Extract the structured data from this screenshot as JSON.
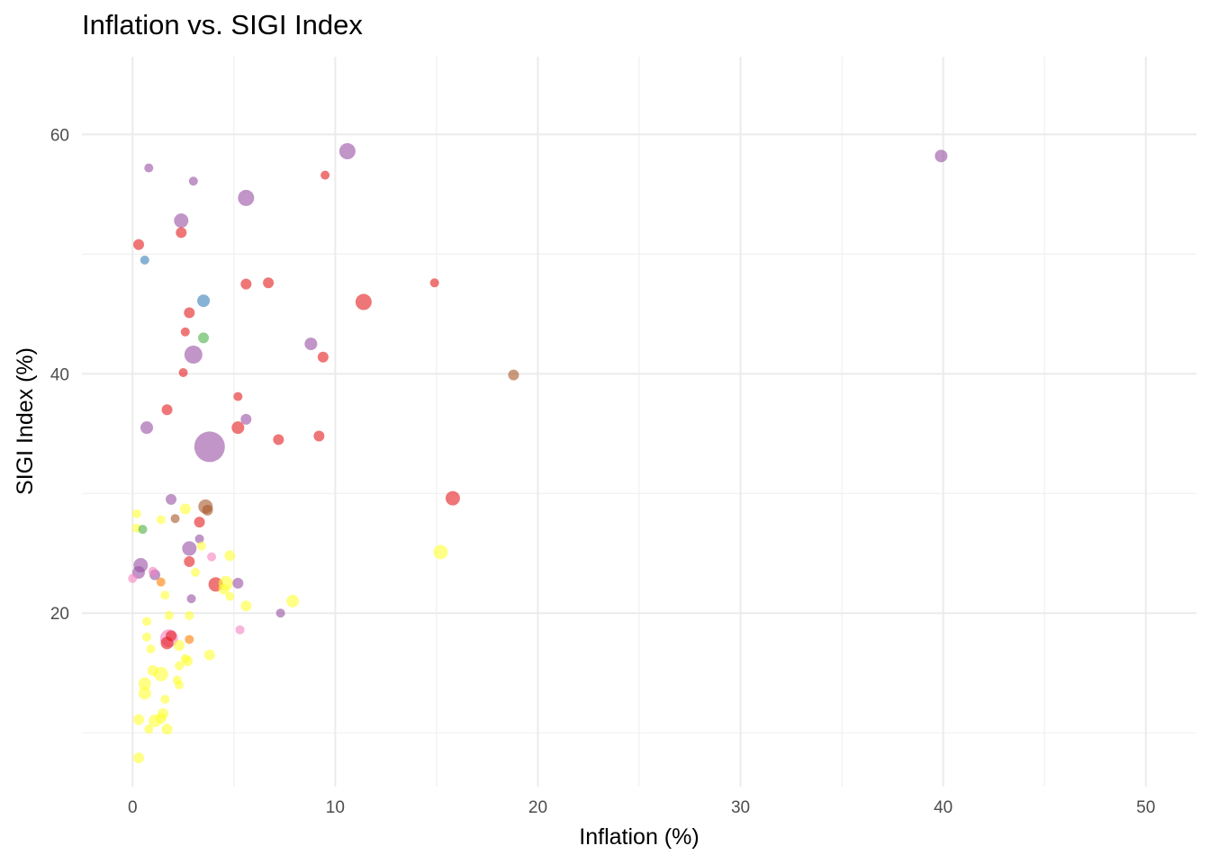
{
  "chart_data": {
    "type": "scatter",
    "title": "Inflation vs. SIGI Index",
    "xlabel": "Inflation (%)",
    "ylabel": "SIGI Index (%)",
    "xlim": [
      -2.5,
      52.5
    ],
    "ylim": [
      5.5,
      66.5
    ],
    "x_ticks": [
      0,
      10,
      20,
      30,
      40,
      50
    ],
    "y_ticks": [
      20,
      40,
      60
    ],
    "grid": true,
    "legend": "none",
    "point_opacity": 0.6,
    "points": [
      {
        "x": 39.9,
        "y": 58.2,
        "r": 7,
        "color": "#984ea3"
      },
      {
        "x": 10.6,
        "y": 58.6,
        "r": 9,
        "color": "#984ea3"
      },
      {
        "x": 9.5,
        "y": 56.6,
        "r": 5,
        "color": "#e41a1c"
      },
      {
        "x": 0.8,
        "y": 57.2,
        "r": 5,
        "color": "#984ea3"
      },
      {
        "x": 3.0,
        "y": 56.1,
        "r": 5,
        "color": "#984ea3"
      },
      {
        "x": 5.6,
        "y": 54.7,
        "r": 9,
        "color": "#984ea3"
      },
      {
        "x": 2.4,
        "y": 52.8,
        "r": 8,
        "color": "#984ea3"
      },
      {
        "x": 2.4,
        "y": 51.8,
        "r": 6,
        "color": "#e41a1c"
      },
      {
        "x": 0.3,
        "y": 50.8,
        "r": 6,
        "color": "#e41a1c"
      },
      {
        "x": 0.6,
        "y": 49.5,
        "r": 5,
        "color": "#377eb8"
      },
      {
        "x": 14.9,
        "y": 47.6,
        "r": 5,
        "color": "#e41a1c"
      },
      {
        "x": 6.7,
        "y": 47.6,
        "r": 6,
        "color": "#e41a1c"
      },
      {
        "x": 5.6,
        "y": 47.5,
        "r": 6,
        "color": "#e41a1c"
      },
      {
        "x": 11.4,
        "y": 46.0,
        "r": 9,
        "color": "#e41a1c"
      },
      {
        "x": 3.5,
        "y": 46.1,
        "r": 7,
        "color": "#377eb8"
      },
      {
        "x": 2.8,
        "y": 45.1,
        "r": 6,
        "color": "#e41a1c"
      },
      {
        "x": 2.6,
        "y": 43.5,
        "r": 5,
        "color": "#e41a1c"
      },
      {
        "x": 3.5,
        "y": 43.0,
        "r": 6,
        "color": "#4daf4a"
      },
      {
        "x": 8.8,
        "y": 42.5,
        "r": 7,
        "color": "#984ea3"
      },
      {
        "x": 9.4,
        "y": 41.4,
        "r": 6,
        "color": "#e41a1c"
      },
      {
        "x": 3.0,
        "y": 41.6,
        "r": 10,
        "color": "#984ea3"
      },
      {
        "x": 18.8,
        "y": 39.9,
        "r": 6,
        "color": "#a65628"
      },
      {
        "x": 2.5,
        "y": 40.1,
        "r": 5,
        "color": "#e41a1c"
      },
      {
        "x": 5.2,
        "y": 38.1,
        "r": 5,
        "color": "#e41a1c"
      },
      {
        "x": 1.7,
        "y": 37.0,
        "r": 6,
        "color": "#e41a1c"
      },
      {
        "x": 5.6,
        "y": 36.2,
        "r": 6,
        "color": "#984ea3"
      },
      {
        "x": 0.7,
        "y": 35.5,
        "r": 7,
        "color": "#984ea3"
      },
      {
        "x": 5.2,
        "y": 35.5,
        "r": 7,
        "color": "#e41a1c"
      },
      {
        "x": 7.2,
        "y": 34.5,
        "r": 6,
        "color": "#e41a1c"
      },
      {
        "x": 9.2,
        "y": 34.8,
        "r": 6,
        "color": "#e41a1c"
      },
      {
        "x": 3.8,
        "y": 33.9,
        "r": 17,
        "color": "#984ea3"
      },
      {
        "x": 15.8,
        "y": 29.6,
        "r": 8,
        "color": "#e41a1c"
      },
      {
        "x": 1.9,
        "y": 29.5,
        "r": 6,
        "color": "#984ea3"
      },
      {
        "x": 3.6,
        "y": 28.9,
        "r": 8,
        "color": "#a65628"
      },
      {
        "x": 3.7,
        "y": 28.6,
        "r": 6,
        "color": "#a65628"
      },
      {
        "x": 2.6,
        "y": 28.7,
        "r": 6,
        "color": "#ffff33"
      },
      {
        "x": 0.2,
        "y": 28.3,
        "r": 5,
        "color": "#ffff33"
      },
      {
        "x": 1.4,
        "y": 27.8,
        "r": 5,
        "color": "#ffff33"
      },
      {
        "x": 2.1,
        "y": 27.9,
        "r": 5,
        "color": "#a65628"
      },
      {
        "x": 3.3,
        "y": 27.6,
        "r": 6,
        "color": "#e41a1c"
      },
      {
        "x": 0.2,
        "y": 27.1,
        "r": 5,
        "color": "#ffff33"
      },
      {
        "x": 0.5,
        "y": 27.0,
        "r": 5,
        "color": "#4daf4a"
      },
      {
        "x": 3.3,
        "y": 26.2,
        "r": 5,
        "color": "#984ea3"
      },
      {
        "x": 3.4,
        "y": 25.6,
        "r": 5,
        "color": "#ffff33"
      },
      {
        "x": 2.8,
        "y": 25.4,
        "r": 8,
        "color": "#984ea3"
      },
      {
        "x": 15.2,
        "y": 25.1,
        "r": 8,
        "color": "#ffff33"
      },
      {
        "x": 4.8,
        "y": 24.8,
        "r": 6,
        "color": "#ffff33"
      },
      {
        "x": 3.9,
        "y": 24.7,
        "r": 5,
        "color": "#f781bf"
      },
      {
        "x": 2.8,
        "y": 24.3,
        "r": 6,
        "color": "#e41a1c"
      },
      {
        "x": 0.4,
        "y": 24.0,
        "r": 8,
        "color": "#984ea3"
      },
      {
        "x": 0.3,
        "y": 23.4,
        "r": 7,
        "color": "#984ea3"
      },
      {
        "x": 1.0,
        "y": 23.5,
        "r": 5,
        "color": "#f781bf"
      },
      {
        "x": 1.1,
        "y": 23.2,
        "r": 6,
        "color": "#984ea3"
      },
      {
        "x": 3.1,
        "y": 23.4,
        "r": 5,
        "color": "#ffff33"
      },
      {
        "x": 0.0,
        "y": 22.9,
        "r": 5,
        "color": "#f781bf"
      },
      {
        "x": 1.4,
        "y": 22.6,
        "r": 5,
        "color": "#ff7f00"
      },
      {
        "x": 4.1,
        "y": 22.4,
        "r": 8,
        "color": "#e41a1c"
      },
      {
        "x": 4.6,
        "y": 22.5,
        "r": 8,
        "color": "#ffff33"
      },
      {
        "x": 4.5,
        "y": 22.0,
        "r": 6,
        "color": "#ffff33"
      },
      {
        "x": 5.2,
        "y": 22.5,
        "r": 6,
        "color": "#984ea3"
      },
      {
        "x": 1.6,
        "y": 21.5,
        "r": 5,
        "color": "#ffff33"
      },
      {
        "x": 4.8,
        "y": 21.4,
        "r": 5,
        "color": "#ffff33"
      },
      {
        "x": 2.9,
        "y": 21.2,
        "r": 5,
        "color": "#984ea3"
      },
      {
        "x": 7.9,
        "y": 21.0,
        "r": 7,
        "color": "#ffff33"
      },
      {
        "x": 5.6,
        "y": 20.6,
        "r": 6,
        "color": "#ffff33"
      },
      {
        "x": 7.3,
        "y": 20.0,
        "r": 5,
        "color": "#984ea3"
      },
      {
        "x": 1.8,
        "y": 19.8,
        "r": 5,
        "color": "#ffff33"
      },
      {
        "x": 2.8,
        "y": 19.8,
        "r": 5,
        "color": "#ffff33"
      },
      {
        "x": 0.7,
        "y": 19.3,
        "r": 5,
        "color": "#ffff33"
      },
      {
        "x": 5.3,
        "y": 18.6,
        "r": 5,
        "color": "#f781bf"
      },
      {
        "x": 1.8,
        "y": 17.9,
        "r": 10,
        "color": "#f781bf"
      },
      {
        "x": 1.9,
        "y": 18.1,
        "r": 6,
        "color": "#e41a1c"
      },
      {
        "x": 0.7,
        "y": 18.0,
        "r": 5,
        "color": "#ffff33"
      },
      {
        "x": 2.8,
        "y": 17.8,
        "r": 5,
        "color": "#ff7f00"
      },
      {
        "x": 1.7,
        "y": 17.5,
        "r": 7,
        "color": "#e41a1c"
      },
      {
        "x": 2.3,
        "y": 17.3,
        "r": 6,
        "color": "#ffff33"
      },
      {
        "x": 0.9,
        "y": 17.0,
        "r": 5,
        "color": "#ffff33"
      },
      {
        "x": 3.8,
        "y": 16.5,
        "r": 6,
        "color": "#ffff33"
      },
      {
        "x": 2.6,
        "y": 16.2,
        "r": 5,
        "color": "#ffff33"
      },
      {
        "x": 2.7,
        "y": 16.0,
        "r": 6,
        "color": "#ffff33"
      },
      {
        "x": 2.3,
        "y": 15.6,
        "r": 5,
        "color": "#ffff33"
      },
      {
        "x": 1.0,
        "y": 15.2,
        "r": 6,
        "color": "#ffff33"
      },
      {
        "x": 1.4,
        "y": 14.9,
        "r": 8,
        "color": "#ffff33"
      },
      {
        "x": 2.2,
        "y": 14.4,
        "r": 5,
        "color": "#ffff33"
      },
      {
        "x": 0.6,
        "y": 14.1,
        "r": 7,
        "color": "#ffff33"
      },
      {
        "x": 2.3,
        "y": 14.0,
        "r": 5,
        "color": "#ffff33"
      },
      {
        "x": 0.6,
        "y": 13.3,
        "r": 7,
        "color": "#ffff33"
      },
      {
        "x": 1.6,
        "y": 12.8,
        "r": 5,
        "color": "#ffff33"
      },
      {
        "x": 1.5,
        "y": 11.6,
        "r": 6,
        "color": "#ffff33"
      },
      {
        "x": 0.3,
        "y": 11.1,
        "r": 6,
        "color": "#ffff33"
      },
      {
        "x": 1.1,
        "y": 11.0,
        "r": 7,
        "color": "#ffff33"
      },
      {
        "x": 1.4,
        "y": 11.2,
        "r": 6,
        "color": "#ffff33"
      },
      {
        "x": 0.8,
        "y": 10.3,
        "r": 5,
        "color": "#ffff33"
      },
      {
        "x": 1.7,
        "y": 10.3,
        "r": 6,
        "color": "#ffff33"
      },
      {
        "x": 0.3,
        "y": 7.9,
        "r": 6,
        "color": "#ffff33"
      }
    ]
  }
}
